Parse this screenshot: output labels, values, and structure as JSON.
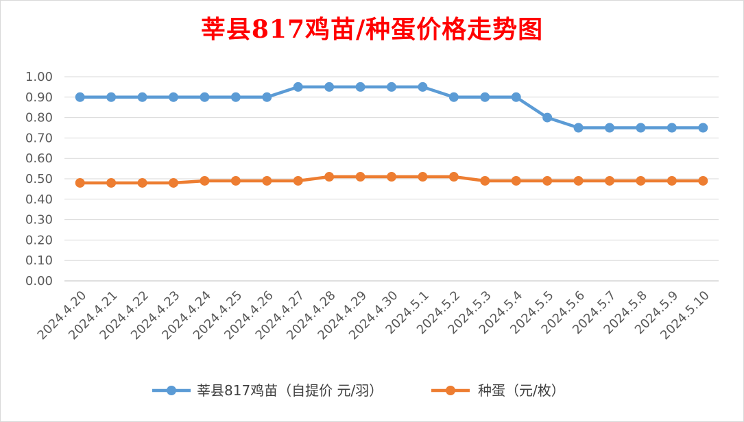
{
  "chart_data": {
    "type": "line",
    "title": "莘县817鸡苗/种蛋价格走势图",
    "categories": [
      "2024.4.20",
      "2024.4.21",
      "2024.4.22",
      "2024.4.23",
      "2024.4.24",
      "2024.4.25",
      "2024.4.26",
      "2024.4.27",
      "2024.4.28",
      "2024.4.29",
      "2024.4.30",
      "2024.5.1",
      "2024.5.2",
      "2024.5.3",
      "2024.5.4",
      "2024.5.5",
      "2024.5.6",
      "2024.5.7",
      "2024.5.8",
      "2024.5.9",
      "2024.5.10"
    ],
    "series": [
      {
        "name": "莘县817鸡苗（自提价 元/羽）",
        "color": "#5b9bd5",
        "values": [
          0.9,
          0.9,
          0.9,
          0.9,
          0.9,
          0.9,
          0.9,
          0.95,
          0.95,
          0.95,
          0.95,
          0.95,
          0.9,
          0.9,
          0.9,
          0.8,
          0.75,
          0.75,
          0.75,
          0.75,
          0.75
        ]
      },
      {
        "name": "种蛋（元/枚）",
        "color": "#ed7d31",
        "values": [
          0.48,
          0.48,
          0.48,
          0.48,
          0.49,
          0.49,
          0.49,
          0.49,
          0.51,
          0.51,
          0.51,
          0.51,
          0.51,
          0.49,
          0.49,
          0.49,
          0.49,
          0.49,
          0.49,
          0.49,
          0.49
        ]
      }
    ],
    "ylim": [
      0,
      1.0
    ],
    "yticks": [
      "0.00",
      "0.10",
      "0.20",
      "0.30",
      "0.40",
      "0.50",
      "0.60",
      "0.70",
      "0.80",
      "0.90",
      "1.00"
    ],
    "xlabel": "",
    "ylabel": "",
    "grid": true,
    "legend": "bottom"
  }
}
